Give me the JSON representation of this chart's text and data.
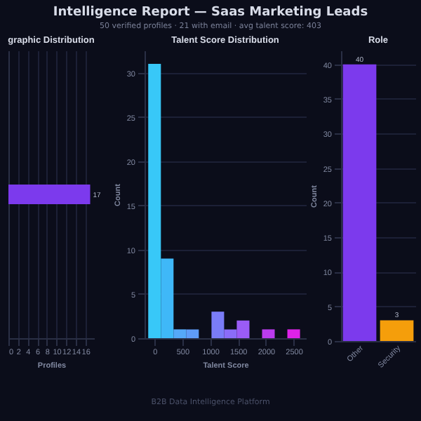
{
  "chart_data": [
    {
      "type": "other",
      "title": "Intelligence Report — Saas Marketing Leads",
      "subtitle": "50 verified profiles · 21 with email · avg talent score: 403",
      "annotations": [
        "B2B Data Intelligence Platform"
      ]
    },
    {
      "type": "bar",
      "orientation": "horizontal",
      "title": "graphic Distribution",
      "xlabel": "Profiles",
      "categories": [
        null
      ],
      "values": [
        17
      ],
      "colors": [
        "#7c3aed"
      ],
      "xlim": [
        0,
        17.8
      ],
      "xticks": [
        0,
        2,
        4,
        6,
        8,
        10,
        12,
        14,
        16
      ],
      "data_labels": true,
      "grid": "x"
    },
    {
      "type": "histogram",
      "title": "Talent Score Distribution",
      "xlabel": "Talent Score",
      "ylabel": "Count",
      "bins": [
        -114,
        114,
        341,
        568,
        795,
        1023,
        1250,
        1477,
        1705,
        1932,
        2159,
        2386,
        2614
      ],
      "values": [
        31,
        9,
        1,
        1,
        0,
        3,
        1,
        2,
        0,
        1,
        0,
        1
      ],
      "colors": [
        "#38c8f8",
        "#3fb8f8",
        "#55a8f8",
        "#5f9cf8",
        "#6c8cf8",
        "#7a7cf8",
        "#8a6cf8",
        "#9a5cf6",
        "#aa4cf2",
        "#bb3cee",
        "#cc2cea",
        "#dd22e8"
      ],
      "xlim": [
        -180,
        2720
      ],
      "xticks": [
        0,
        500,
        1000,
        1500,
        2000,
        2500
      ],
      "ylim": [
        0,
        32.5
      ],
      "yticks": [
        0,
        5,
        10,
        15,
        20,
        25,
        30
      ],
      "grid": "y"
    },
    {
      "type": "bar",
      "title": "Role",
      "ylabel": "Count",
      "categories": [
        "Other",
        "Security"
      ],
      "values": [
        40,
        3
      ],
      "colors": [
        "#7c3aed",
        "#f59e0b"
      ],
      "ylim": [
        0,
        42
      ],
      "yticks": [
        0,
        5,
        10,
        15,
        20,
        25,
        30,
        35,
        40
      ],
      "data_labels": true,
      "grid": "y"
    }
  ]
}
